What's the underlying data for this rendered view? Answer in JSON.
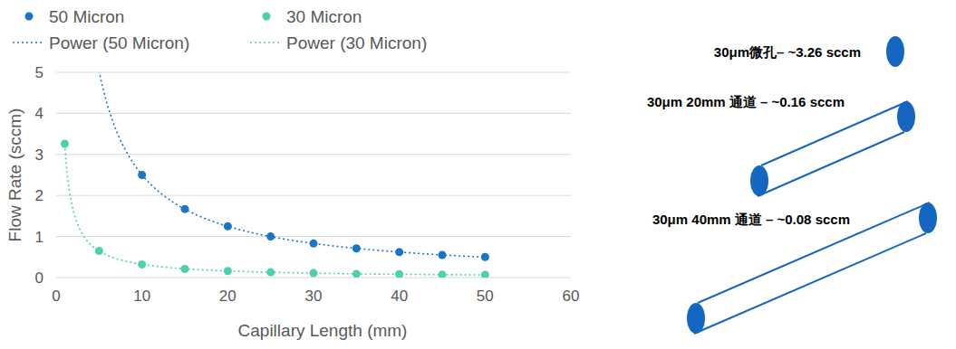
{
  "chart_data": {
    "type": "scatter",
    "x_label": "Capillary Length (mm)",
    "y_label": "Flow Rate (sccm)",
    "xlim": [
      0,
      60
    ],
    "xticks": [
      0,
      10,
      20,
      30,
      40,
      50,
      60
    ],
    "ylim": [
      0,
      5
    ],
    "yticks": [
      0,
      1,
      2,
      3,
      4,
      5
    ],
    "grid": true,
    "legend": "top",
    "series": [
      {
        "name": "50 Micron",
        "color": "#1a75c4",
        "marker": "circle",
        "x": [
          10,
          15,
          20,
          25,
          30,
          35,
          40,
          45,
          50
        ],
        "values": [
          2.5,
          1.67,
          1.25,
          1.0,
          0.83,
          0.71,
          0.62,
          0.55,
          0.5
        ],
        "trendline": {
          "type": "power",
          "name": "Power (50 Micron)",
          "line_style": "dotted"
        }
      },
      {
        "name": "30 Micron",
        "color": "#4ecfae",
        "marker": "circle",
        "x": [
          1,
          5,
          10,
          15,
          20,
          25,
          30,
          35,
          40,
          45,
          50
        ],
        "values": [
          3.26,
          0.65,
          0.32,
          0.21,
          0.16,
          0.13,
          0.11,
          0.09,
          0.08,
          0.07,
          0.065
        ],
        "trendline": {
          "type": "power",
          "name": "Power (30 Micron)",
          "line_style": "dotted"
        }
      }
    ]
  },
  "diagram": {
    "color": "#1466c0",
    "items": [
      {
        "label": "30μm微孔– ~3.26 sccm",
        "shape": "hole"
      },
      {
        "label": "30μm 20mm 通道 – ~0.16 sccm",
        "shape": "channel"
      },
      {
        "label": "30μm 40mm 通道 – ~0.08 sccm",
        "shape": "channel"
      }
    ]
  }
}
